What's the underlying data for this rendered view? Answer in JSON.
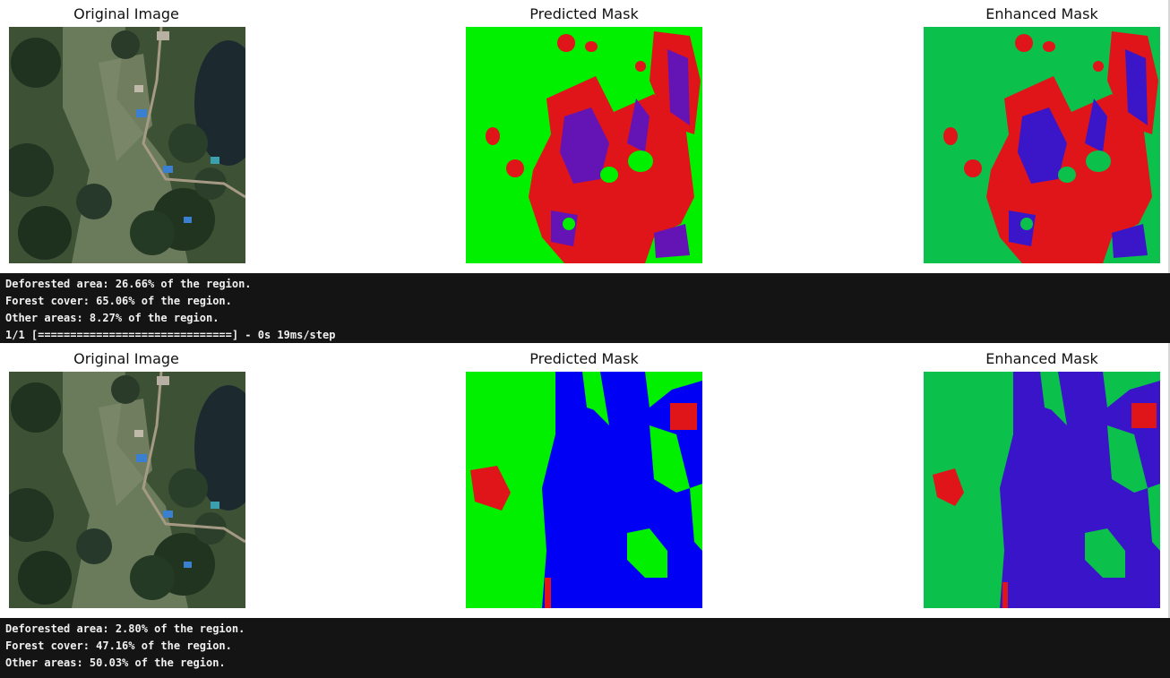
{
  "runs": [
    {
      "titles": [
        "Original Image",
        "Predicted Mask",
        "Enhanced Mask"
      ],
      "output_lines": [
        "Deforested area: 26.66% of the region.",
        "Forest cover: 65.06% of the region.",
        "Other areas: 8.27% of the region.",
        "1/1 [==============================] - 0s 19ms/step"
      ]
    },
    {
      "titles": [
        "Original Image",
        "Predicted Mask",
        "Enhanced Mask"
      ],
      "output_lines": [
        "Deforested area: 2.80% of the region.",
        "Forest cover: 47.16% of the region.",
        "Other areas: 50.03% of the region."
      ]
    }
  ],
  "colors": {
    "predicted_forest": "#00f000",
    "enhanced_forest": "#0cc04c",
    "deforested": "#e0151a",
    "other_predicted_run1": "#6414b4",
    "other_enhanced_run1": "#3a16c8",
    "other_predicted_run2": "#0000f5",
    "other_enhanced_run2": "#3a14c8",
    "console_bg": "#141414",
    "console_text": "#f0f0f0"
  }
}
